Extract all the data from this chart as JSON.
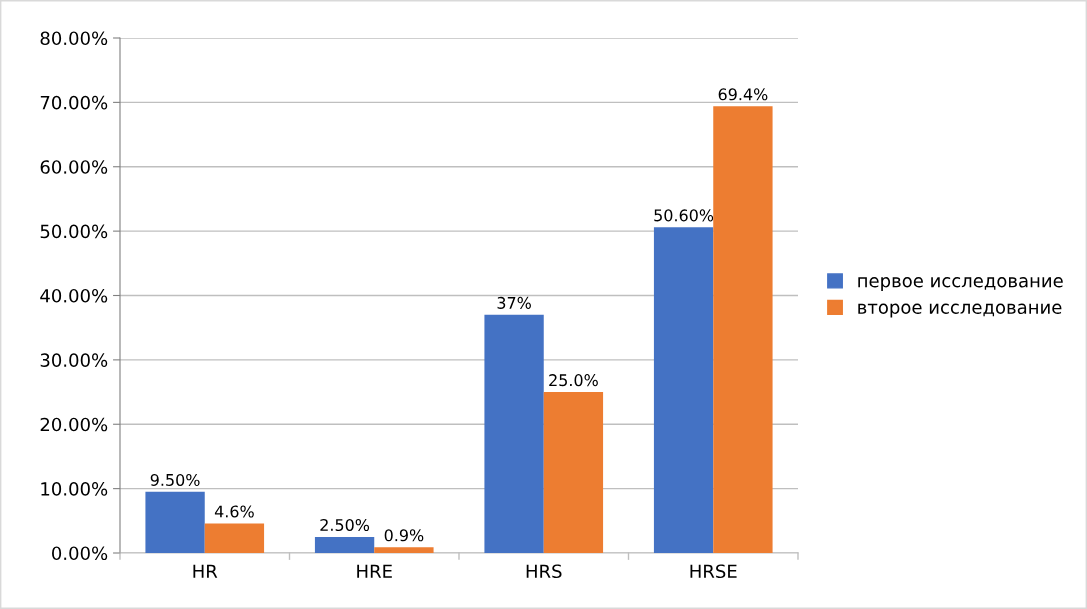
{
  "chart_data": {
    "type": "bar",
    "categories": [
      "HR",
      "HRE",
      "HRS",
      "HRSE"
    ],
    "series": [
      {
        "name": "первое исследование",
        "color": "#4472c4",
        "values": [
          9.5,
          2.5,
          37,
          50.6
        ],
        "value_labels": [
          "9.50%",
          "2.50%",
          "37%",
          "50.60%"
        ]
      },
      {
        "name": "второе исследование",
        "color": "#ed7d31",
        "values": [
          4.6,
          0.9,
          25.0,
          69.4
        ],
        "value_labels": [
          "4.6%",
          "0.9%",
          "25.0%",
          "69.4%"
        ]
      }
    ],
    "ylim": [
      0,
      80
    ],
    "yticks": [
      {
        "value": 0,
        "label": "0.00%"
      },
      {
        "value": 10,
        "label": "10.00%"
      },
      {
        "value": 20,
        "label": "20.00%"
      },
      {
        "value": 30,
        "label": "30.00%"
      },
      {
        "value": 40,
        "label": "40.00%"
      },
      {
        "value": 50,
        "label": "50.00%"
      },
      {
        "value": 60,
        "label": "60.00%"
      },
      {
        "value": 70,
        "label": "70.00%"
      },
      {
        "value": 80,
        "label": "80.00%"
      }
    ],
    "grid": "y",
    "legend": "right"
  }
}
